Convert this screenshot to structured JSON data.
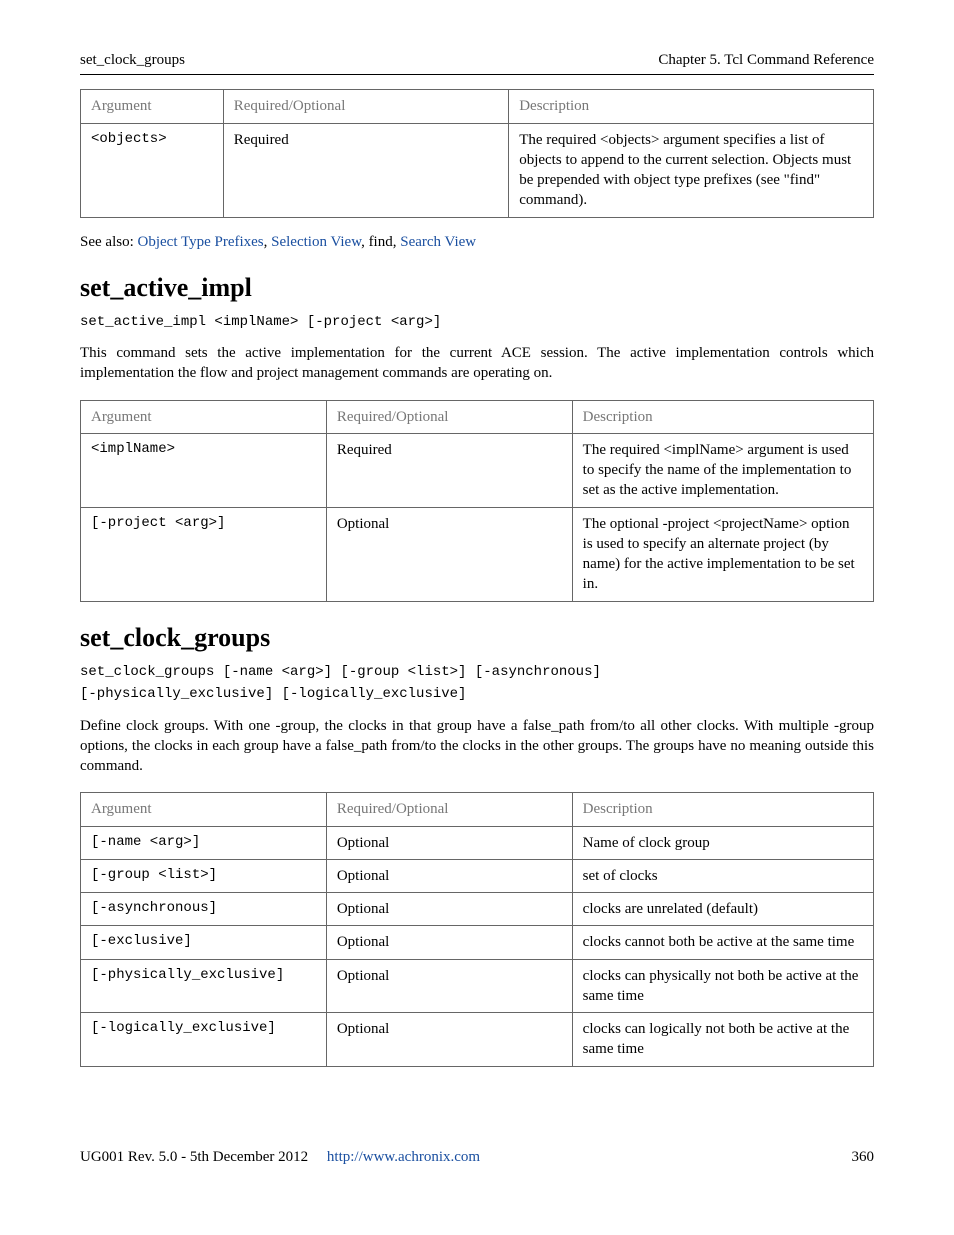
{
  "header": {
    "left": "set_clock_groups",
    "right": "Chapter 5. Tcl Command Reference"
  },
  "table1": {
    "headers": [
      "Argument",
      "Required/Optional",
      "Description"
    ],
    "rows": [
      {
        "arg": "<objects>",
        "req": "Required",
        "desc": "The required <objects> argument specifies a list of objects to append to the current selection. Objects must be prepended with object type prefixes (see \"find\" command)."
      }
    ]
  },
  "see_also": {
    "prefix": "See also: ",
    "links": [
      "Object Type Prefixes",
      "Selection View",
      "find",
      "Search View"
    ]
  },
  "section1": {
    "title": "set_active_impl",
    "syntax": "set_active_impl <implName> [-project <arg>]",
    "desc": "This command sets the active implementation for the current ACE session. The active implementation controls which implementation the flow and project management commands are operating on.",
    "table": {
      "headers": [
        "Argument",
        "Required/Optional",
        "Description"
      ],
      "rows": [
        {
          "arg": "<implName>",
          "req": "Required",
          "desc": "The required <implName> argument is used to specify the name of the implementation to set as the active implementation."
        },
        {
          "arg": "[-project <arg>]",
          "req": "Optional",
          "desc": "The optional -project <projectName> option is used to specify an alternate project (by name) for the active implementation to be set in."
        }
      ]
    }
  },
  "section2": {
    "title": "set_clock_groups",
    "syntax": "set_clock_groups [-name <arg>] [-group <list>] [-asynchronous]\n[-physically_exclusive] [-logically_exclusive]",
    "desc": "Define clock groups. With one -group, the clocks in that group have a false_path from/to all other clocks. With multiple -group options, the clocks in each group have a false_path from/to the clocks in the other groups. The groups have no meaning outside this command.",
    "table": {
      "headers": [
        "Argument",
        "Required/Optional",
        "Description"
      ],
      "rows": [
        {
          "arg": "[-name <arg>]",
          "req": "Optional",
          "desc": "Name of clock group"
        },
        {
          "arg": "[-group <list>]",
          "req": "Optional",
          "desc": "set of clocks"
        },
        {
          "arg": "[-asynchronous]",
          "req": "Optional",
          "desc": "clocks are unrelated (default)"
        },
        {
          "arg": "[-exclusive]",
          "req": "Optional",
          "desc": "clocks cannot both be active at the same time"
        },
        {
          "arg": "[-physically_exclusive]",
          "req": "Optional",
          "desc": "clocks can physically not both be active at the same time"
        },
        {
          "arg": "[-logically_exclusive]",
          "req": "Optional",
          "desc": "clocks can logically not both be active at the same time"
        }
      ]
    }
  },
  "footer": {
    "left": "UG001 Rev. 5.0 - 5th December 2012",
    "url": "http://www.achronix.com",
    "page": "360"
  }
}
